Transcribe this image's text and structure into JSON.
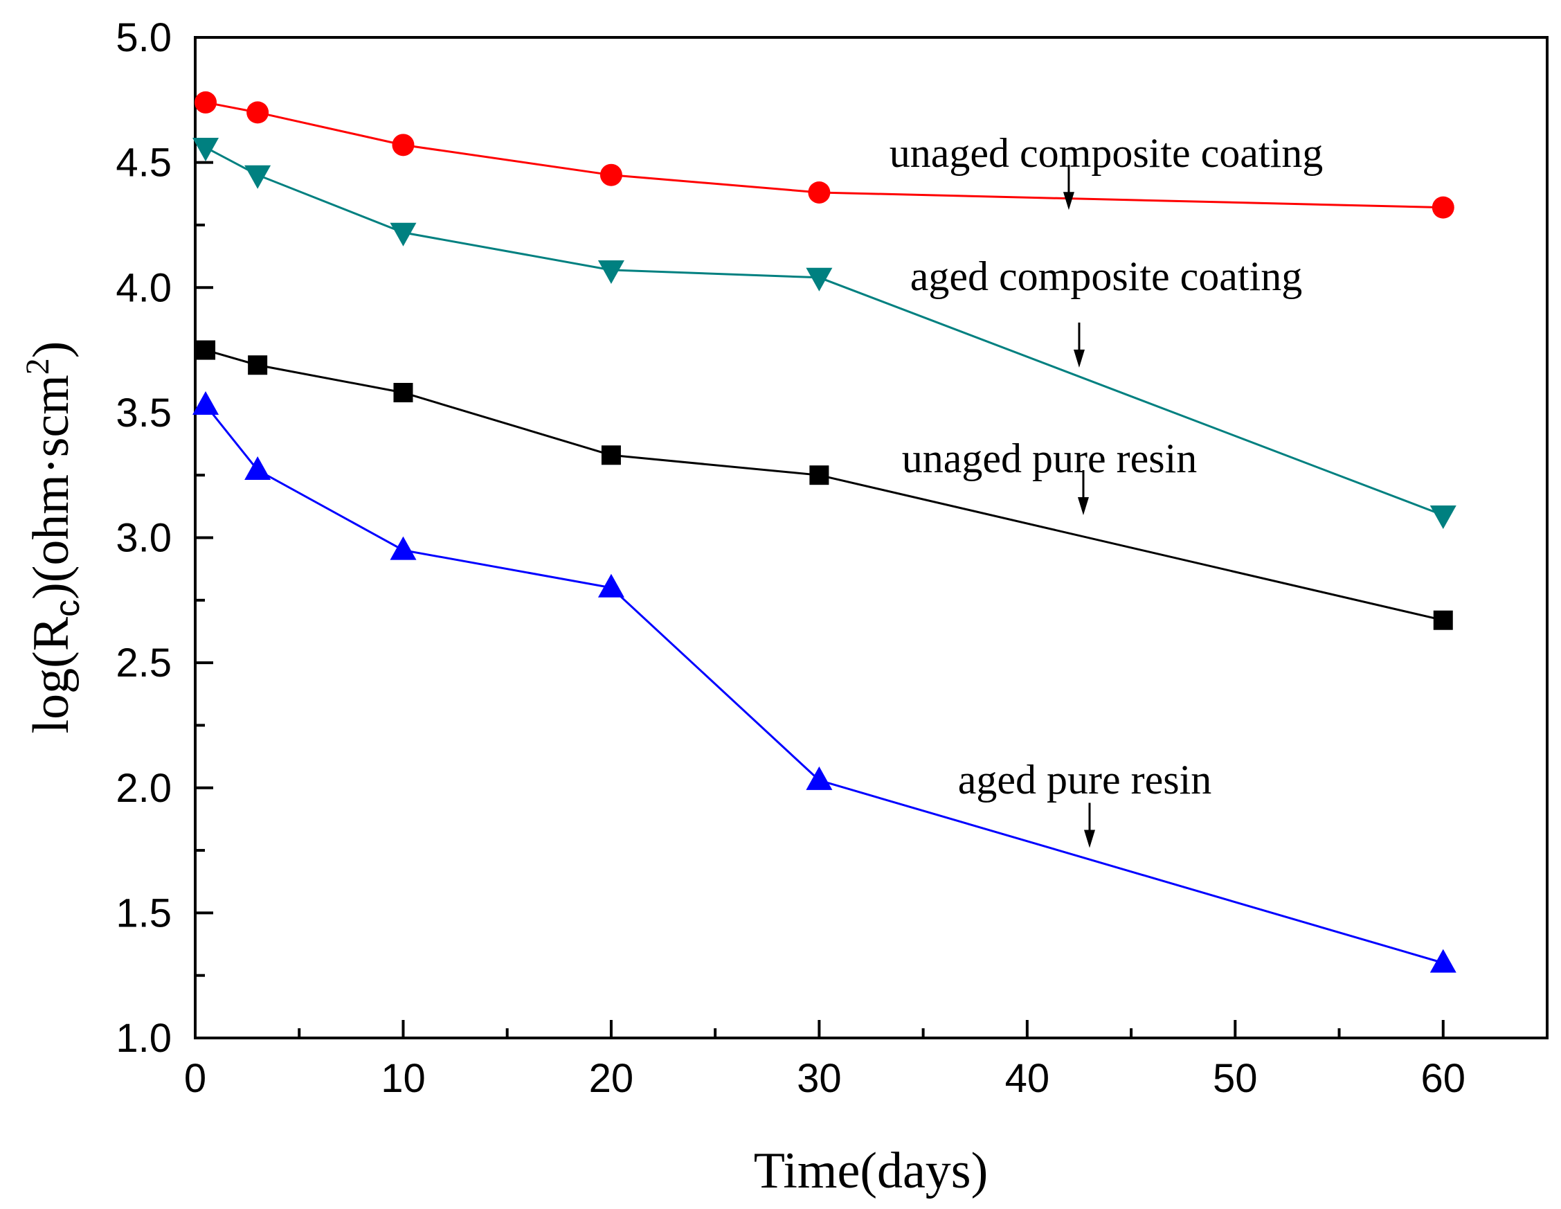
{
  "chart_data": {
    "type": "line",
    "title": "",
    "xlabel": "Time(days)",
    "ylabel": {
      "prefix": "log(R",
      "subscript": "c",
      "middle": ")(ohm·scm",
      "superscript": "2",
      "suffix": ")"
    },
    "xlim": [
      0,
      65
    ],
    "ylim": [
      1.0,
      5.0
    ],
    "xticks": [
      0,
      10,
      20,
      30,
      40,
      50,
      60
    ],
    "yticks": [
      1.0,
      1.5,
      2.0,
      2.5,
      3.0,
      3.5,
      4.0,
      4.5,
      5.0
    ],
    "x": [
      0.5,
      3,
      10,
      20,
      30,
      60
    ],
    "series": [
      {
        "name": "unaged composite coating",
        "color": "#ff0000",
        "marker": "circle",
        "values": [
          4.74,
          4.7,
          4.57,
          4.45,
          4.38,
          4.32
        ]
      },
      {
        "name": "aged composite coating",
        "color": "#008080",
        "marker": "triangle-down",
        "values": [
          4.56,
          4.45,
          4.22,
          4.07,
          4.04,
          3.09
        ]
      },
      {
        "name": "unaged pure resin",
        "color": "#000000",
        "marker": "square",
        "values": [
          3.75,
          3.69,
          3.58,
          3.33,
          3.25,
          2.67
        ]
      },
      {
        "name": "aged pure resin",
        "color": "#0000ff",
        "marker": "triangle-up",
        "values": [
          3.53,
          3.27,
          2.95,
          2.8,
          2.03,
          1.3
        ]
      }
    ],
    "annotations": [
      {
        "text": "unaged composite coating",
        "arrow_x": 42,
        "arrow_from_y": 4.49,
        "arrow_to_y": 4.31
      },
      {
        "text": "aged composite coating",
        "arrow_x": 42.5,
        "arrow_from_y": 3.86,
        "arrow_to_y": 3.68
      },
      {
        "text": "unaged pure resin",
        "arrow_x": 42.7,
        "arrow_from_y": 3.27,
        "arrow_to_y": 3.09
      },
      {
        "text": "aged pure resin",
        "arrow_x": 43,
        "arrow_from_y": 1.94,
        "arrow_to_y": 1.76
      }
    ]
  }
}
